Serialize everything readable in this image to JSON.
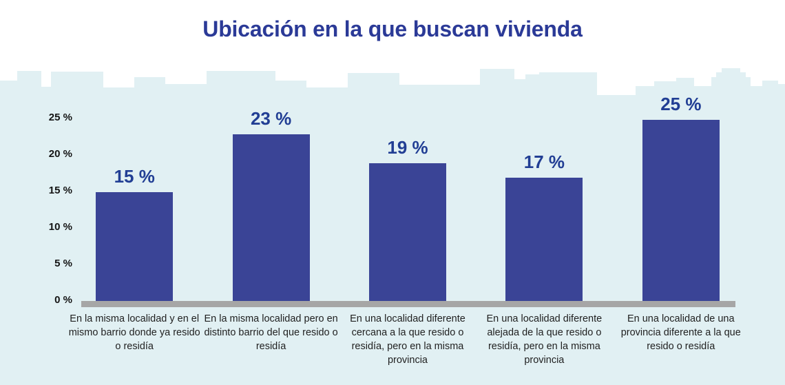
{
  "title": "Ubicación en la que buscan vivienda",
  "colors": {
    "title": "#2b3a97",
    "bar": "#3a4496",
    "data_label": "#213e94",
    "band": "#e1f0f3",
    "baseline": "#a6a6a6",
    "axis_text": "#141414",
    "category_text": "#1f1f1f"
  },
  "decoration": {
    "skyline": "city-skyline-silhouette"
  },
  "chart_data": {
    "type": "bar",
    "title": "Ubicación en la que buscan vivienda",
    "categories": [
      "En la misma localidad y  en el mismo barrio donde ya resido o residía",
      "En la misma localidad pero en distinto barrio del que resido o residía",
      "En una localidad diferente cercana a la que resido o residía, pero en la misma provincia",
      "En una localidad diferente alejada de la que resido o residía, pero en la misma provincia",
      "En una localidad de una provincia diferente a la que resido o residía"
    ],
    "values": [
      15,
      23,
      19,
      17,
      25
    ],
    "value_labels": [
      "15 %",
      "23 %",
      "19 %",
      "17 %",
      "25 %"
    ],
    "xlabel": "",
    "ylabel": "",
    "ylim": [
      0,
      25
    ],
    "yticks": [
      "0 %",
      "5 %",
      "10 %",
      "15 %",
      "20 %",
      "25 %"
    ],
    "grid": false,
    "legend": false
  }
}
